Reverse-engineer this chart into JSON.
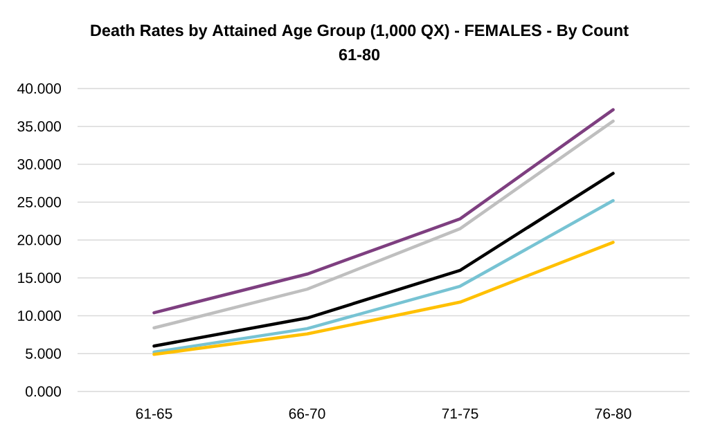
{
  "chart_data": {
    "type": "line",
    "title": "Death Rates by Attained Age Group (1,000 QX) - FEMALES - By Count",
    "subtitle": "61-80",
    "categories": [
      "61-65",
      "66-70",
      "71-75",
      "76-80"
    ],
    "series": [
      {
        "color": "#7e3f80",
        "values": [
          10.4,
          15.5,
          22.8,
          37.2
        ]
      },
      {
        "color": "#bfbfbf",
        "values": [
          8.4,
          13.5,
          21.5,
          35.7
        ]
      },
      {
        "color": "#000000",
        "values": [
          6.0,
          9.7,
          16.0,
          28.8
        ]
      },
      {
        "color": "#77c3d3",
        "values": [
          5.2,
          8.3,
          13.9,
          25.2
        ]
      },
      {
        "color": "#ffc000",
        "values": [
          4.9,
          7.6,
          11.8,
          19.7
        ]
      }
    ],
    "ylim": [
      0,
      40
    ],
    "yticks": [
      {
        "value": 0,
        "label": "0.000"
      },
      {
        "value": 5,
        "label": "5.000"
      },
      {
        "value": 10,
        "label": "10.000"
      },
      {
        "value": 15,
        "label": "15.000"
      },
      {
        "value": 20,
        "label": "20.000"
      },
      {
        "value": 25,
        "label": "25.000"
      },
      {
        "value": 30,
        "label": "30.000"
      },
      {
        "value": 35,
        "label": "35.000"
      },
      {
        "value": 40,
        "label": "40.000"
      }
    ],
    "grid": "y"
  }
}
